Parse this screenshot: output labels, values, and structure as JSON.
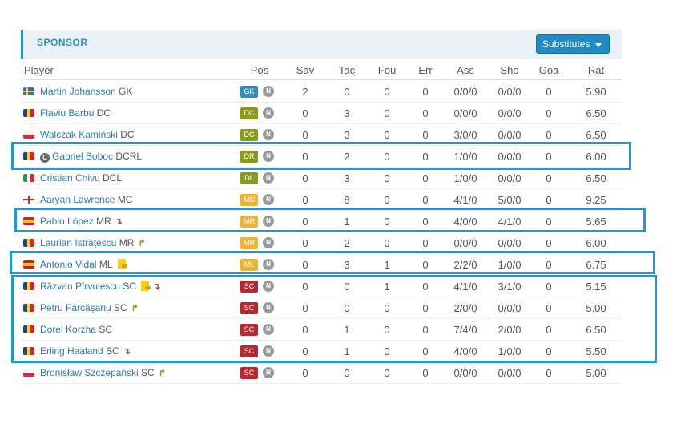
{
  "header": {
    "title": "SPONSOR",
    "substitutes_label": "Substitutes"
  },
  "columns": [
    "Player",
    "Pos",
    "Sav",
    "Tac",
    "Fou",
    "Err",
    "Ass",
    "Sho",
    "Goa",
    "Rat"
  ],
  "colors": {
    "GK": "#2b8fc2",
    "DC": "#8a9a1b",
    "DR": "#8a9a1b",
    "DL": "#8a9a1b",
    "MC": "#f0b332",
    "MR": "#f0b332",
    "ML": "#f0b332",
    "SC": "#b8282f",
    "highlight": "#1b9ad6"
  },
  "players": [
    {
      "flag": "sweden",
      "name": "Martin Johansson",
      "pos_txt": "GK",
      "pos": "GK",
      "sav": "2",
      "tac": "0",
      "fou": "0",
      "err": "0",
      "ass": "0/0/0",
      "sho": "0/0/0",
      "goa": "0",
      "rat": "5.90"
    },
    {
      "flag": "romania",
      "name": "Flaviu Barbu",
      "pos_txt": "DC",
      "pos": "DC",
      "sav": "0",
      "tac": "3",
      "fou": "0",
      "err": "0",
      "ass": "0/0/0",
      "sho": "0/0/0",
      "goa": "0",
      "rat": "6.50"
    },
    {
      "flag": "poland",
      "name": "Walczak Kamiński",
      "pos_txt": "DC",
      "pos": "DC",
      "sav": "0",
      "tac": "3",
      "fou": "0",
      "err": "0",
      "ass": "3/0/0",
      "sho": "0/0/0",
      "goa": "0",
      "rat": "6.50"
    },
    {
      "flag": "romania",
      "name": "Gabriel Boboc",
      "pos_txt": "DCRL",
      "pos": "DR",
      "captain": "C",
      "sav": "0",
      "tac": "2",
      "fou": "0",
      "err": "0",
      "ass": "1/0/0",
      "sho": "0/0/0",
      "goa": "0",
      "rat": "6.00"
    },
    {
      "flag": "italy",
      "name": "Cristian Chivu",
      "pos_txt": "DCL",
      "pos": "DL",
      "sav": "0",
      "tac": "3",
      "fou": "0",
      "err": "0",
      "ass": "1/0/0",
      "sho": "0/0/0",
      "goa": "0",
      "rat": "6.50"
    },
    {
      "flag": "england",
      "name": "Aaryan Lawrence",
      "pos_txt": "MC",
      "pos": "MC",
      "sav": "0",
      "tac": "8",
      "fou": "0",
      "err": "0",
      "ass": "4/1/0",
      "sho": "5/0/0",
      "goa": "0",
      "rat": "9.25"
    },
    {
      "flag": "spain",
      "name": "Pablo López",
      "pos_txt": "MR",
      "pos": "MR",
      "sub": "out",
      "sav": "0",
      "tac": "1",
      "fou": "0",
      "err": "0",
      "ass": "4/0/0",
      "sho": "4/1/0",
      "goa": "0",
      "rat": "5.65"
    },
    {
      "flag": "romania",
      "name": "Laurian Istrățescu",
      "pos_txt": "MR",
      "pos": "MR",
      "sub": "in",
      "sav": "0",
      "tac": "2",
      "fou": "0",
      "err": "0",
      "ass": "0/0/0",
      "sho": "0/0/0",
      "goa": "0",
      "rat": "6.00"
    },
    {
      "flag": "spain",
      "name": "Antonio Vidal",
      "pos_txt": "ML",
      "pos": "ML",
      "card": true,
      "sav": "0",
      "tac": "3",
      "fou": "1",
      "err": "0",
      "ass": "2/2/0",
      "sho": "1/0/0",
      "goa": "0",
      "rat": "6.75"
    },
    {
      "flag": "romania",
      "name": "Răzvan Pîrvulescu",
      "pos_txt": "SC",
      "pos": "SC",
      "card": true,
      "sub": "out",
      "sav": "0",
      "tac": "0",
      "fou": "1",
      "err": "0",
      "ass": "4/1/0",
      "sho": "3/1/0",
      "goa": "0",
      "rat": "5.15"
    },
    {
      "flag": "romania",
      "name": "Petru Fărcășanu",
      "pos_txt": "SC",
      "pos": "SC",
      "sub": "in",
      "sav": "0",
      "tac": "0",
      "fou": "0",
      "err": "0",
      "ass": "2/0/0",
      "sho": "0/0/0",
      "goa": "0",
      "rat": "5.00"
    },
    {
      "flag": "romania",
      "name": "Dorel Korzha",
      "pos_txt": "SC",
      "pos": "SC",
      "sav": "0",
      "tac": "1",
      "fou": "0",
      "err": "0",
      "ass": "7/4/0",
      "sho": "2/0/0",
      "goa": "0",
      "rat": "6.50"
    },
    {
      "flag": "romania",
      "name": "Erling Haaland",
      "pos_txt": "SC",
      "pos": "SC",
      "sub": "out",
      "sav": "0",
      "tac": "1",
      "fou": "0",
      "err": "0",
      "ass": "4/0/0",
      "sho": "1/0/0",
      "goa": "0",
      "rat": "5.50"
    },
    {
      "flag": "poland",
      "name": "Bronisław Szczepański",
      "pos_txt": "SC",
      "pos": "SC",
      "sub": "in",
      "sav": "0",
      "tac": "0",
      "fou": "0",
      "err": "0",
      "ass": "0/0/0",
      "sho": "0/0/0",
      "goa": "0",
      "rat": "5.00"
    }
  ],
  "n_label": "N"
}
